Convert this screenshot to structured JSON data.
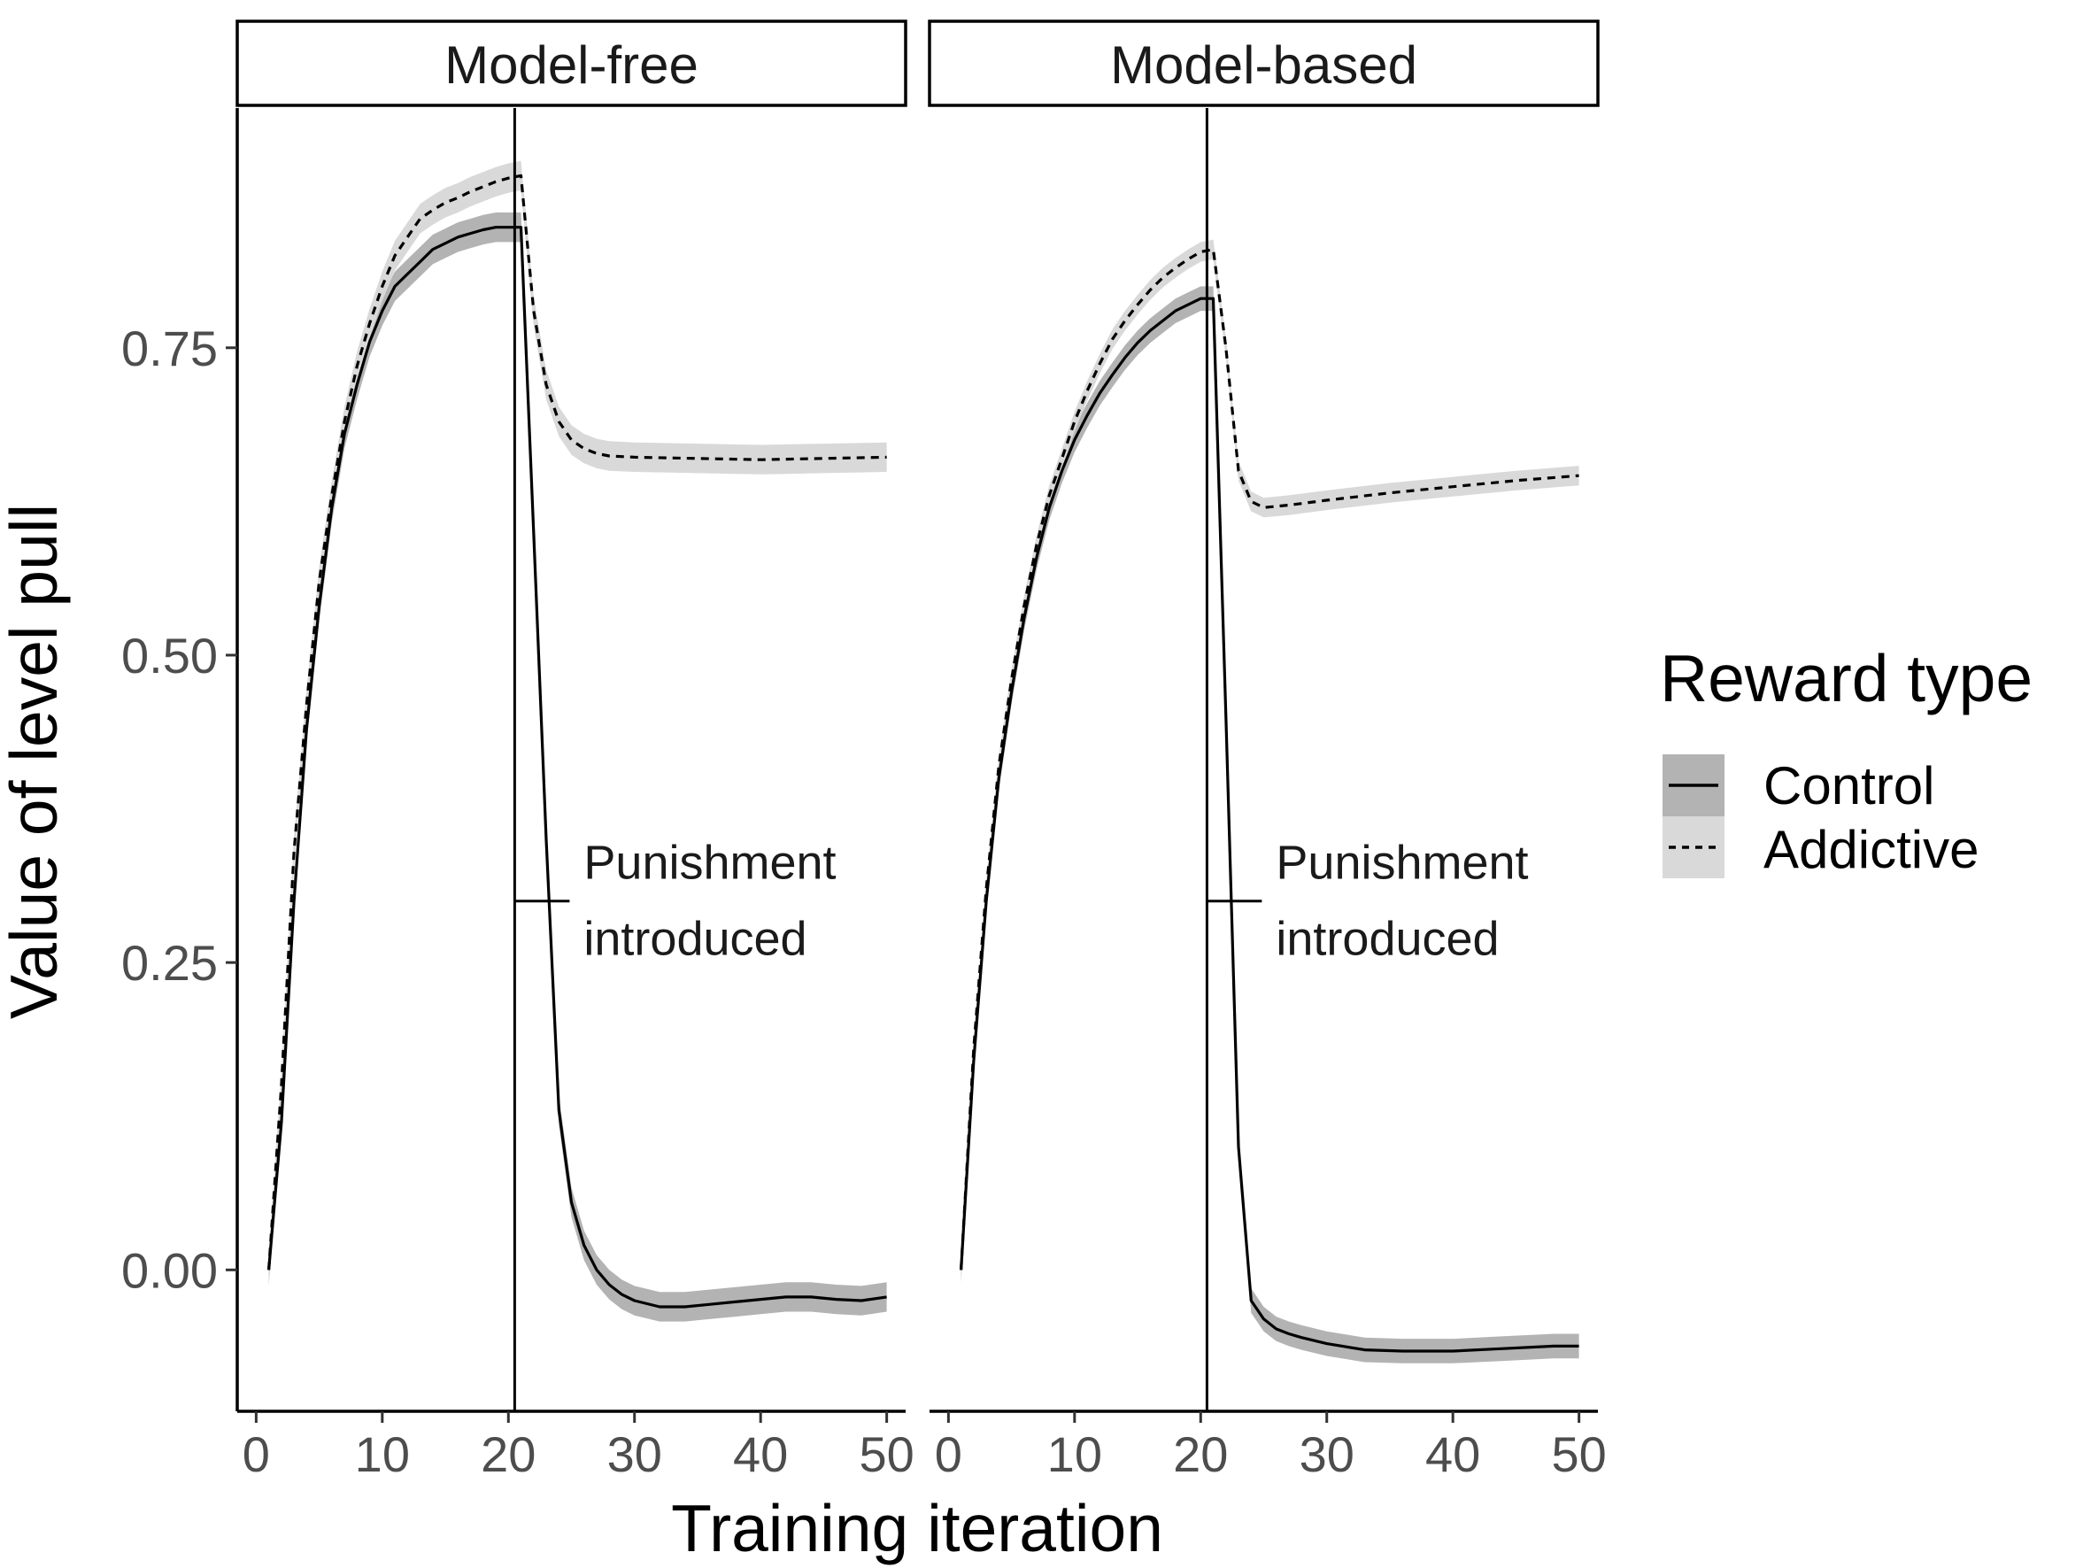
{
  "chart_data": {
    "type": "line",
    "xlabel": "Training iteration",
    "ylabel": "Value of level pull",
    "xlim": [
      -1.5,
      51.5
    ],
    "ylim": [
      -0.115,
      0.945
    ],
    "xticks": [
      0,
      10,
      20,
      30,
      40,
      50
    ],
    "xtick_labels": [
      "0",
      "10",
      "20",
      "30",
      "40",
      "50"
    ],
    "yticks": [
      0.0,
      0.25,
      0.5,
      0.75
    ],
    "ytick_labels": [
      "0.00",
      "0.25",
      "0.50",
      "0.75"
    ],
    "grid": false,
    "legend": {
      "title": "Reward type",
      "position": "right",
      "entries": [
        {
          "label": "Control",
          "linetype": "solid",
          "fill": "#b3b3b3"
        },
        {
          "label": "Addictive",
          "linetype": "dashed",
          "fill": "#d9d9d9"
        }
      ]
    },
    "colors": {
      "line": "#000000",
      "ribbon_control": "#b3b3b3",
      "ribbon_addictive": "#d9d9d9"
    },
    "panels": [
      {
        "title": "Model-free",
        "vline_x": 20.5,
        "annotation": {
          "lines": [
            "Punishment",
            "introduced"
          ],
          "y": 0.3
        },
        "series": [
          {
            "name": "Control",
            "linetype": "solid",
            "x": [
              1,
              2,
              3,
              4,
              5,
              6,
              7,
              8,
              9,
              10,
              11,
              12,
              13,
              14,
              15,
              16,
              17,
              18,
              19,
              20,
              21,
              22,
              23,
              24,
              25,
              26,
              27,
              28,
              29,
              30,
              32,
              34,
              36,
              38,
              40,
              42,
              44,
              46,
              48,
              50
            ],
            "y": [
              0.0,
              0.12,
              0.3,
              0.44,
              0.54,
              0.62,
              0.68,
              0.72,
              0.755,
              0.78,
              0.8,
              0.81,
              0.82,
              0.83,
              0.835,
              0.84,
              0.843,
              0.846,
              0.848,
              0.848,
              0.848,
              0.6,
              0.35,
              0.13,
              0.055,
              0.02,
              0.0,
              -0.012,
              -0.02,
              -0.025,
              -0.03,
              -0.03,
              -0.028,
              -0.026,
              -0.024,
              -0.022,
              -0.022,
              -0.024,
              -0.025,
              -0.022
            ],
            "ribbon": 0.012
          },
          {
            "name": "Addictive",
            "linetype": "dashed",
            "x": [
              1,
              2,
              3,
              4,
              5,
              6,
              7,
              8,
              9,
              10,
              11,
              12,
              13,
              14,
              15,
              16,
              17,
              18,
              19,
              20,
              21,
              22,
              23,
              24,
              25,
              26,
              27,
              28,
              30,
              35,
              40,
              45,
              50
            ],
            "y": [
              0.0,
              0.15,
              0.34,
              0.46,
              0.56,
              0.63,
              0.69,
              0.735,
              0.77,
              0.8,
              0.825,
              0.84,
              0.855,
              0.862,
              0.868,
              0.872,
              0.877,
              0.881,
              0.885,
              0.888,
              0.89,
              0.78,
              0.72,
              0.69,
              0.675,
              0.668,
              0.664,
              0.662,
              0.661,
              0.66,
              0.659,
              0.66,
              0.661
            ],
            "ribbon": 0.012
          }
        ]
      },
      {
        "title": "Model-based",
        "vline_x": 20.5,
        "annotation": {
          "lines": [
            "Punishment",
            "introduced"
          ],
          "y": 0.3
        },
        "series": [
          {
            "name": "Control",
            "linetype": "solid",
            "x": [
              1,
              2,
              3,
              4,
              5,
              6,
              7,
              8,
              9,
              10,
              11,
              12,
              13,
              14,
              15,
              16,
              17,
              18,
              19,
              20,
              21,
              22,
              23,
              24,
              25,
              26,
              27,
              28,
              30,
              33,
              36,
              40,
              44,
              48,
              50
            ],
            "y": [
              0.0,
              0.17,
              0.3,
              0.4,
              0.47,
              0.53,
              0.58,
              0.62,
              0.65,
              0.675,
              0.695,
              0.713,
              0.728,
              0.742,
              0.754,
              0.764,
              0.772,
              0.78,
              0.785,
              0.79,
              0.79,
              0.45,
              0.1,
              -0.025,
              -0.04,
              -0.048,
              -0.052,
              -0.055,
              -0.06,
              -0.065,
              -0.066,
              -0.066,
              -0.064,
              -0.062,
              -0.062
            ],
            "ribbon": 0.01
          },
          {
            "name": "Addictive",
            "linetype": "dashed",
            "x": [
              1,
              2,
              3,
              4,
              5,
              6,
              7,
              8,
              9,
              10,
              11,
              12,
              13,
              14,
              15,
              16,
              17,
              18,
              19,
              20,
              21,
              22,
              23,
              24,
              25,
              27,
              30,
              35,
              40,
              45,
              50
            ],
            "y": [
              0.0,
              0.18,
              0.31,
              0.41,
              0.48,
              0.54,
              0.59,
              0.63,
              0.66,
              0.69,
              0.715,
              0.737,
              0.757,
              0.772,
              0.785,
              0.797,
              0.807,
              0.815,
              0.822,
              0.828,
              0.83,
              0.75,
              0.65,
              0.625,
              0.62,
              0.622,
              0.626,
              0.632,
              0.637,
              0.642,
              0.646
            ],
            "ribbon": 0.008
          }
        ]
      }
    ]
  }
}
